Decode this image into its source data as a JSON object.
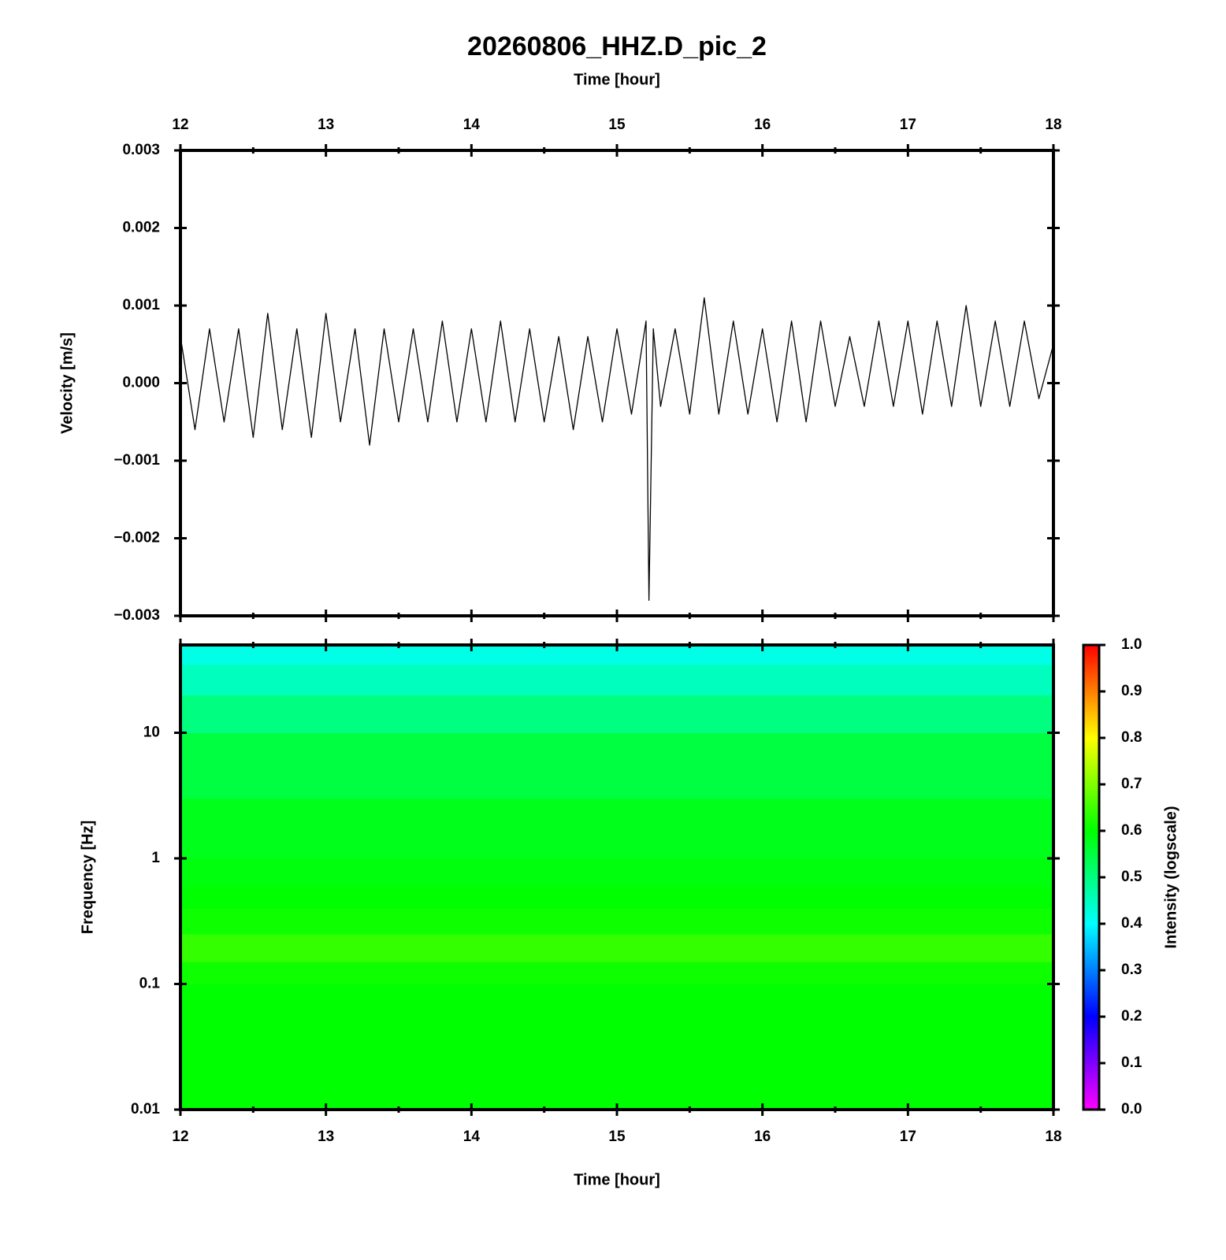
{
  "chart_data": [
    {
      "type": "line",
      "title": "20260806_HHZ.D_pic_2",
      "xlabel": "Time [hour]",
      "ylabel": "Velocity [m/s]",
      "color": "#000000",
      "xlim": [
        12,
        18
      ],
      "xticks": [
        12,
        13,
        14,
        15,
        16,
        17,
        18
      ],
      "xminorticks": [
        12.5,
        13.5,
        14.5,
        15.5,
        16.5,
        17.5
      ],
      "ylim": [
        -0.003,
        0.003
      ],
      "yticks": [
        {
          "value": -0.003,
          "label": "−0.003"
        },
        {
          "value": -0.002,
          "label": "−0.002"
        },
        {
          "value": -0.001,
          "label": "−0.001"
        },
        {
          "value": 0,
          "label": "0.000"
        },
        {
          "value": 0.001,
          "label": "0.001"
        },
        {
          "value": 0.002,
          "label": "0.002"
        },
        {
          "value": 0.003,
          "label": "0.003"
        }
      ],
      "x": [
        12.0,
        12.1,
        12.2,
        12.3,
        12.4,
        12.5,
        12.6,
        12.7,
        12.8,
        12.9,
        13.0,
        13.1,
        13.2,
        13.3,
        13.4,
        13.5,
        13.6,
        13.7,
        13.8,
        13.9,
        14.0,
        14.1,
        14.2,
        14.3,
        14.4,
        14.5,
        14.6,
        14.7,
        14.8,
        14.9,
        15.0,
        15.1,
        15.2,
        15.22,
        15.25,
        15.3,
        15.4,
        15.5,
        15.6,
        15.7,
        15.8,
        15.9,
        16.0,
        16.1,
        16.2,
        16.3,
        16.4,
        16.5,
        16.6,
        16.7,
        16.8,
        16.9,
        17.0,
        17.1,
        17.2,
        17.3,
        17.4,
        17.5,
        17.6,
        17.7,
        17.8,
        17.9,
        18.0
      ],
      "values": [
        0.0006,
        -0.0006,
        0.0007,
        -0.0005,
        0.0007,
        -0.0007,
        0.0009,
        -0.0006,
        0.0007,
        -0.0007,
        0.0009,
        -0.0005,
        0.0007,
        -0.0008,
        0.0007,
        -0.0005,
        0.0007,
        -0.0005,
        0.0008,
        -0.0005,
        0.0007,
        -0.0005,
        0.0008,
        -0.0005,
        0.0007,
        -0.0005,
        0.0006,
        -0.0006,
        0.0006,
        -0.0005,
        0.0007,
        -0.0004,
        0.0008,
        -0.0028,
        0.0007,
        -0.0003,
        0.0007,
        -0.0004,
        0.0011,
        -0.0004,
        0.0008,
        -0.0004,
        0.0007,
        -0.0005,
        0.0008,
        -0.0005,
        0.0008,
        -0.0003,
        0.0006,
        -0.0003,
        0.0008,
        -0.0003,
        0.0008,
        -0.0004,
        0.0008,
        -0.0003,
        0.001,
        -0.0003,
        0.0008,
        -0.0003,
        0.0008,
        -0.0002,
        0.0005
      ]
    },
    {
      "type": "heatmap",
      "xlabel": "Time [hour]",
      "ylabel": "Frequency [Hz]",
      "xlim": [
        12,
        18
      ],
      "xticks": [
        12,
        13,
        14,
        15,
        16,
        17,
        18
      ],
      "xminorticks": [
        12.5,
        13.5,
        14.5,
        15.5,
        16.5,
        17.5
      ],
      "ylim": [
        0.01,
        50
      ],
      "yscale": "log",
      "yticks": [
        0.01,
        0.1,
        1,
        10
      ],
      "ybins": [
        0.01,
        0.03,
        0.1,
        0.15,
        0.25,
        0.4,
        0.6,
        1,
        3,
        10,
        20,
        35,
        50
      ],
      "values": [
        0.6,
        0.6,
        0.61,
        0.64,
        0.61,
        0.6,
        0.59,
        0.58,
        0.55,
        0.5,
        0.45,
        0.42
      ],
      "colormap": "rainbow",
      "colorbar": {
        "label": "Intensity (logscale)",
        "lim": [
          0,
          1
        ],
        "ticks": [
          {
            "value": 0,
            "label": "0.0"
          },
          {
            "value": 0.1,
            "label": "0.1"
          },
          {
            "value": 0.2,
            "label": "0.2"
          },
          {
            "value": 0.3,
            "label": "0.3"
          },
          {
            "value": 0.4,
            "label": "0.4"
          },
          {
            "value": 0.5,
            "label": "0.5"
          },
          {
            "value": 0.6,
            "label": "0.6"
          },
          {
            "value": 0.7,
            "label": "0.7"
          },
          {
            "value": 0.8,
            "label": "0.8"
          },
          {
            "value": 0.9,
            "label": "0.9"
          },
          {
            "value": 1,
            "label": "1.0"
          }
        ]
      }
    }
  ]
}
